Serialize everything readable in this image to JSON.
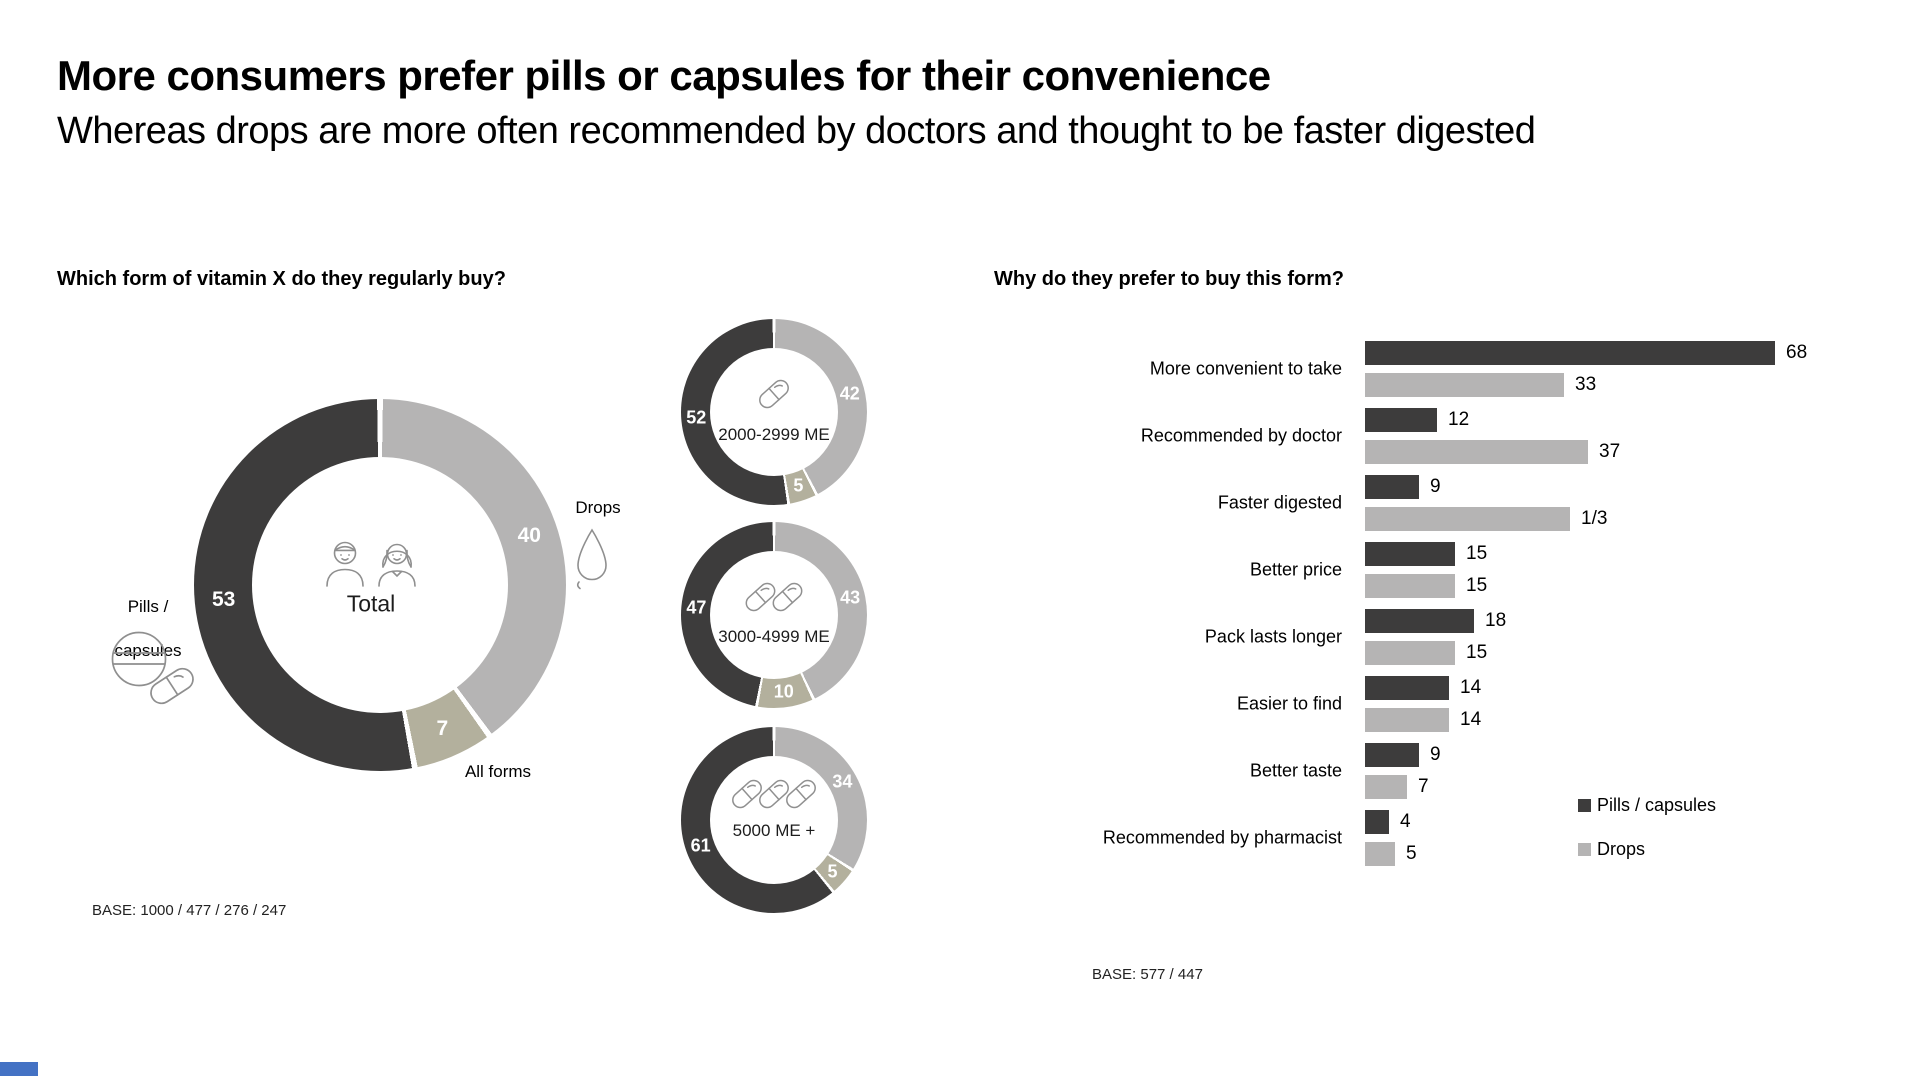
{
  "slide": {
    "title": "More consumers prefer pills or capsules for their convenience",
    "subtitle": "Whereas drops are more often recommended by doctors and thought to be faster digested"
  },
  "colors": {
    "pills": "#3d3c3c",
    "drops": "#b5b4b4",
    "all_forms": "#b3b09d",
    "label_on_segment": "#ffffff",
    "icon_stroke": "#8f8f8f",
    "corner_accent": "#4472c4"
  },
  "icons": {
    "pills_capsules": "tablet-capsule-icon",
    "drops": "droplet-icon",
    "total_center": "man-woman-icon",
    "dose_center": "capsule-icon"
  },
  "left_panel": {
    "question": "Which form of vitamin X do they regularly buy?",
    "base": "BASE: 1000 / 477 / 276 / 247",
    "labels": {
      "pills_line1": "Pills /",
      "pills_line2": "capsules",
      "drops": "Drops",
      "all_forms": "All forms"
    }
  },
  "right_panel": {
    "question": "Why do they prefer to buy this form?",
    "base": "BASE: 577 / 447",
    "legend": [
      {
        "key": "pills",
        "label": "Pills / capsules"
      },
      {
        "key": "drops",
        "label": "Drops"
      }
    ]
  },
  "chart_data": [
    {
      "type": "donut",
      "name": "total",
      "center_label": "Total",
      "center_icon": "man-woman-icon",
      "segments": [
        {
          "key": "drops",
          "name": "Drops",
          "value": 40,
          "label": "40"
        },
        {
          "key": "all_forms",
          "name": "All forms",
          "value": 7,
          "label": "7"
        },
        {
          "key": "pills",
          "name": "Pills / capsules",
          "value": 53,
          "label": "53"
        }
      ]
    },
    {
      "type": "donut",
      "name": "2000-2999 ME",
      "center_label": "2000-2999 ME",
      "center_icon": "capsule-icon",
      "icon_count": 1,
      "segments": [
        {
          "key": "drops",
          "name": "Drops",
          "value": 42,
          "label": "42"
        },
        {
          "key": "all_forms",
          "name": "All forms",
          "value": 5,
          "label": "5"
        },
        {
          "key": "pills",
          "name": "Pills / capsules",
          "value": 52,
          "label": "52"
        }
      ]
    },
    {
      "type": "donut",
      "name": "3000-4999 ME",
      "center_label": "3000-4999 ME",
      "center_icon": "capsule-icon",
      "icon_count": 2,
      "segments": [
        {
          "key": "drops",
          "name": "Drops",
          "value": 43,
          "label": "43"
        },
        {
          "key": "all_forms",
          "name": "All forms",
          "value": 10,
          "label": "10"
        },
        {
          "key": "pills",
          "name": "Pills / capsules",
          "value": 47,
          "label": "47"
        }
      ]
    },
    {
      "type": "donut",
      "name": "5000 ME +",
      "center_label": "5000 ME +",
      "center_icon": "capsule-icon",
      "icon_count": 3,
      "segments": [
        {
          "key": "drops",
          "name": "Drops",
          "value": 34,
          "label": "34"
        },
        {
          "key": "all_forms",
          "name": "All forms",
          "value": 5,
          "label": "5"
        },
        {
          "key": "pills",
          "name": "Pills / capsules",
          "value": 61,
          "label": "61"
        }
      ]
    },
    {
      "type": "bar",
      "name": "reasons",
      "title": "Why do they prefer to buy this form?",
      "orientation": "horizontal",
      "legend_position": "bottom-right",
      "categories": [
        "More convenient to take",
        "Recommended by doctor",
        "Faster digested",
        "Better price",
        "Pack lasts longer",
        "Easier to find",
        "Better taste",
        "Recommended by pharmacist"
      ],
      "series": [
        {
          "name": "Pills / capsules",
          "key": "pills",
          "values": [
            68,
            12,
            9,
            15,
            18,
            14,
            9,
            4
          ],
          "labels": [
            "68",
            "12",
            "9",
            "15",
            "18",
            "14",
            "9",
            "4"
          ]
        },
        {
          "name": "Drops",
          "key": "drops",
          "values": [
            33,
            37,
            34,
            15,
            15,
            14,
            7,
            5
          ],
          "labels": [
            "33",
            "37",
            "1/3",
            "15",
            "15",
            "14",
            "7",
            "5"
          ]
        }
      ]
    }
  ]
}
